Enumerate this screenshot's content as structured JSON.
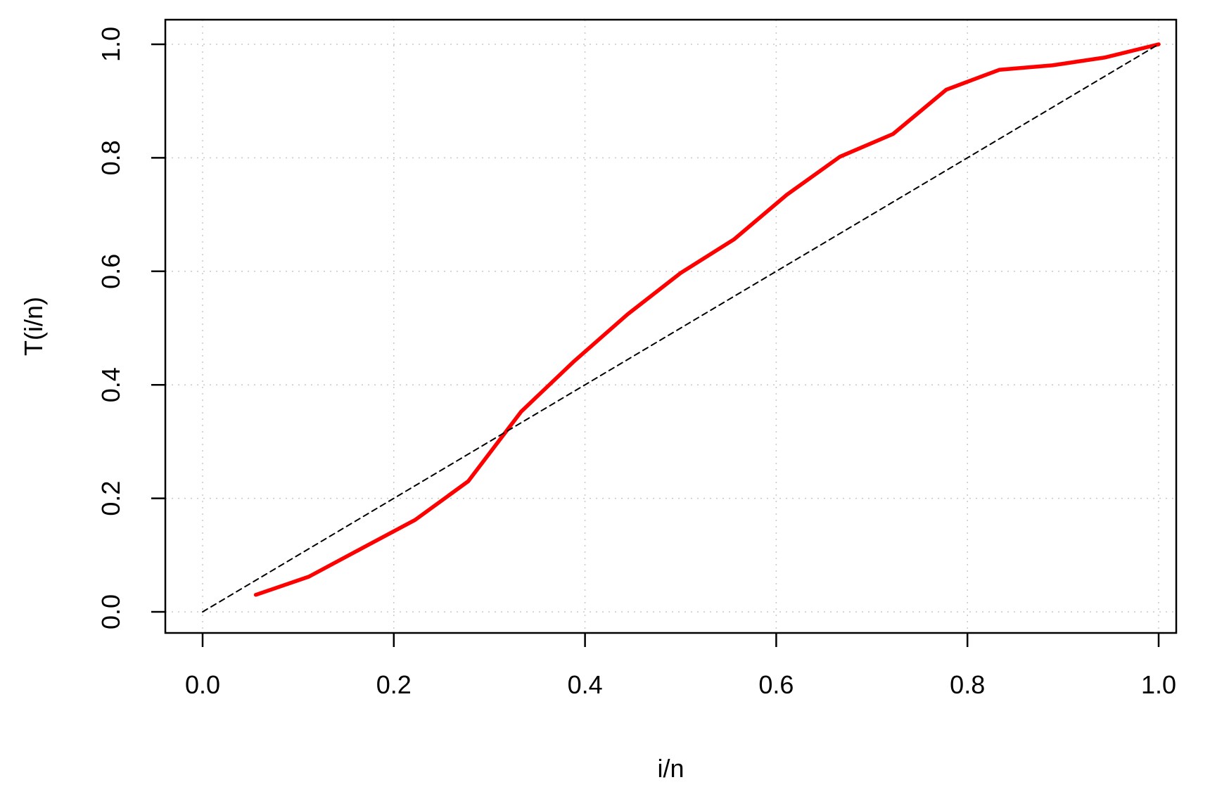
{
  "chart_data": {
    "type": "line",
    "title": "",
    "xlabel": "i/n",
    "ylabel": "T(i/n)",
    "xlim": [
      0.0,
      1.0
    ],
    "ylim": [
      0.0,
      1.0
    ],
    "xticks": [
      0.0,
      0.2,
      0.4,
      0.6,
      0.8,
      1.0
    ],
    "yticks": [
      0.0,
      0.2,
      0.4,
      0.6,
      0.8,
      1.0
    ],
    "xtick_labels": [
      "0.0",
      "0.2",
      "0.4",
      "0.6",
      "0.8",
      "1.0"
    ],
    "ytick_labels": [
      "0.0",
      "0.2",
      "0.4",
      "0.6",
      "0.8",
      "1.0"
    ],
    "grid": true,
    "series": [
      {
        "color": "#ff0000",
        "style": "solid",
        "x": [
          0.0556,
          0.1111,
          0.1667,
          0.2222,
          0.2778,
          0.3333,
          0.3889,
          0.4444,
          0.5,
          0.5556,
          0.6111,
          0.6667,
          0.7222,
          0.7778,
          0.8333,
          0.8889,
          0.9444,
          1.0
        ],
        "y": [
          0.03,
          0.062,
          0.112,
          0.162,
          0.23,
          0.353,
          0.442,
          0.524,
          0.597,
          0.656,
          0.735,
          0.802,
          0.842,
          0.92,
          0.955,
          0.963,
          0.977,
          1.0
        ]
      },
      {
        "color": "#000000",
        "style": "dashed",
        "x": [
          0.0,
          1.0
        ],
        "y": [
          0.0,
          1.0
        ]
      }
    ]
  }
}
